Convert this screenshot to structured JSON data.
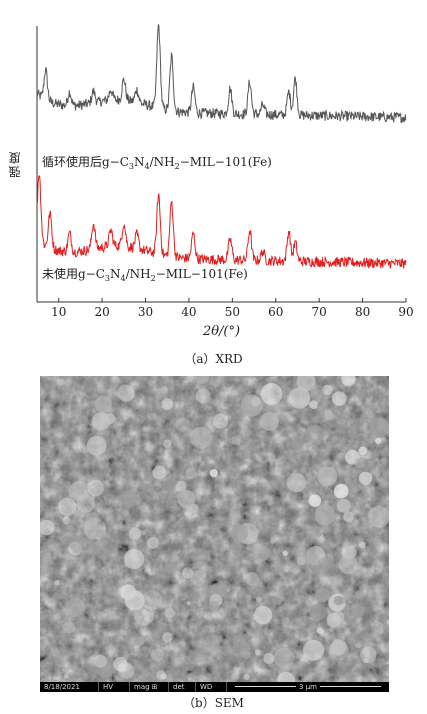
{
  "chart_data": {
    "type": "line",
    "xlabel": "2θ/(°)",
    "ylabel": "强度",
    "xlim": [
      5,
      90
    ],
    "xticks": [
      10,
      20,
      30,
      40,
      50,
      60,
      70,
      80,
      90
    ],
    "series": [
      {
        "name": "循环使用后g−C3N4/NH2−MIL−101(Fe)",
        "label_parts": [
          "循环使用后g−C",
          "3",
          "N",
          "4",
          "/NH",
          "2",
          "−MIL−101(Fe)"
        ],
        "color": "#555555",
        "baseline": 42,
        "peaks": [
          [
            7,
            26
          ],
          [
            12.5,
            12
          ],
          [
            18,
            10
          ],
          [
            22,
            9
          ],
          [
            25,
            18
          ],
          [
            28,
            11
          ],
          [
            33,
            72
          ],
          [
            36,
            47
          ],
          [
            41,
            22
          ],
          [
            49.5,
            22
          ],
          [
            54,
            28
          ],
          [
            57,
            8
          ],
          [
            63,
            20
          ],
          [
            64.5,
            32
          ]
        ]
      },
      {
        "name": "未使用g−C3N4/NH2−MIL−101(Fe)",
        "label_parts": [
          "未使用g−C",
          "3",
          "N",
          "4",
          "/NH",
          "2",
          "−MIL−101(Fe)"
        ],
        "color": "#e02020",
        "baseline": 8,
        "peaks": [
          [
            5.5,
            60
          ],
          [
            8,
            30
          ],
          [
            12.5,
            16
          ],
          [
            18,
            22
          ],
          [
            22,
            14
          ],
          [
            25,
            20
          ],
          [
            28,
            12
          ],
          [
            33,
            52
          ],
          [
            36,
            48
          ],
          [
            41,
            22
          ],
          [
            49.5,
            18
          ],
          [
            54,
            26
          ],
          [
            57,
            8
          ],
          [
            63,
            26
          ],
          [
            64.5,
            16
          ]
        ]
      }
    ]
  },
  "captions": {
    "a": "（a）XRD",
    "b": "（b）SEM"
  },
  "sem": {
    "date": "8/18/2021",
    "hv": "HV",
    "mag": "mag ⊞",
    "det": "det",
    "wd": "WD",
    "scale": "3 μm"
  }
}
